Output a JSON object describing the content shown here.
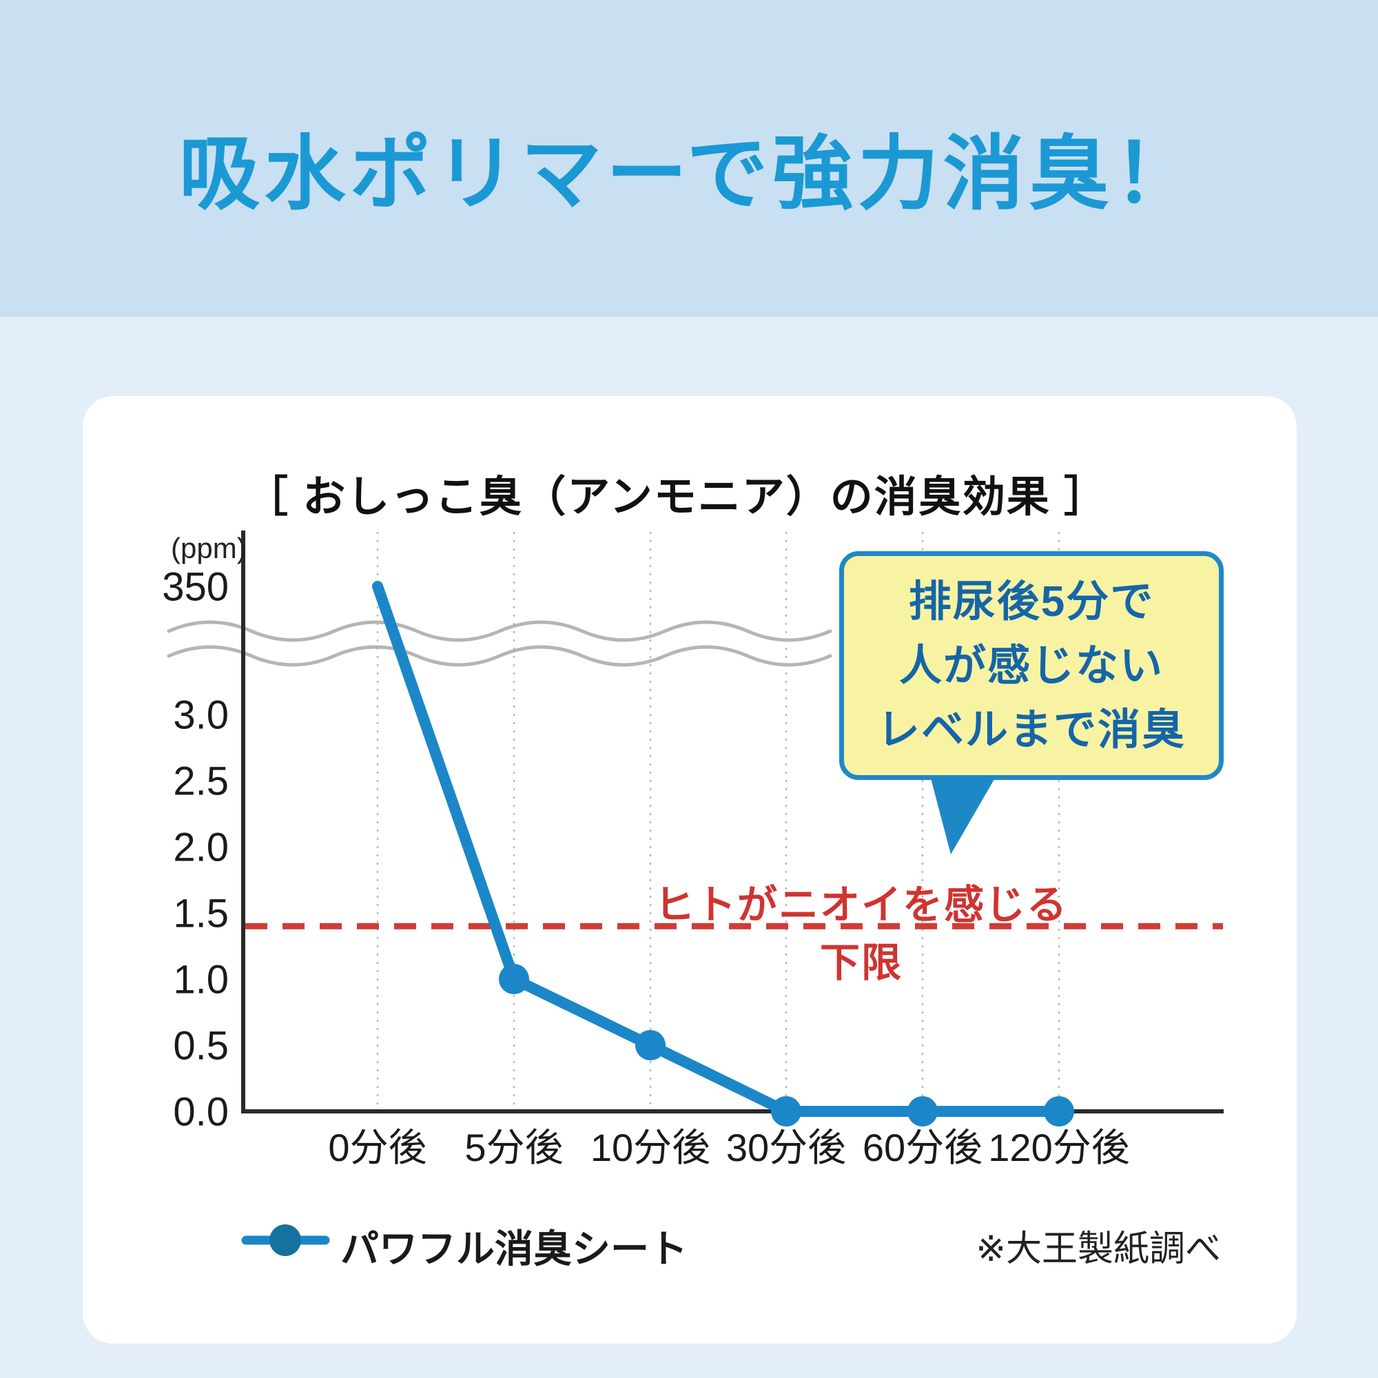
{
  "page": {
    "title": "吸水ポリマーで強力消臭！"
  },
  "chart": {
    "title": "［ おしっこ臭（アンモニア）の消臭効果 ］",
    "unit_label": "(ppm)",
    "y_ticks": [
      {
        "label": "350",
        "value": 350
      },
      {
        "label": "3.0",
        "value": 3.0
      },
      {
        "label": "2.5",
        "value": 2.5
      },
      {
        "label": "2.0",
        "value": 2.0
      },
      {
        "label": "1.5",
        "value": 1.5
      },
      {
        "label": "1.0",
        "value": 1.0
      },
      {
        "label": "0.5",
        "value": 0.5
      },
      {
        "label": "0.0",
        "value": 0.0
      }
    ],
    "threshold_label": "ヒトがニオイを感じる下限",
    "callout_lines": [
      "排尿後5分で",
      "人が感じない",
      "レベルまで消臭"
    ],
    "legend_label": "パワフル消臭シート",
    "source_note": "※大王製紙調べ"
  },
  "chart_data": {
    "type": "line",
    "title": "おしっこ臭（アンモニア）の消臭効果",
    "categories": [
      "0分後",
      "5分後",
      "10分後",
      "30分後",
      "60分後",
      "120分後"
    ],
    "series": [
      {
        "name": "パワフル消臭シート",
        "values": [
          350,
          1.0,
          0.5,
          0.0,
          0.0,
          0.0
        ]
      }
    ],
    "ylabel": "ppm",
    "ylim": [
      0,
      3.2
    ],
    "axis_break": {
      "between": [
        3.2,
        350
      ]
    },
    "threshold": {
      "value": 1.4,
      "label": "ヒトがニオイを感じる下限"
    },
    "annotation": "排尿後5分で人が感じないレベルまで消臭",
    "source": "※大王製紙調べ",
    "legend_position": "bottom-left",
    "grid": "vertical-dashed"
  },
  "colors": {
    "accent_blue": "#1B99D4",
    "line_blue": "#1B87C8",
    "dot_blue": "#15719F",
    "threshold_red": "#D23B33",
    "callout_bg": "#F8F3A3",
    "callout_border": "#1E88C7",
    "callout_text": "#1565A8",
    "header_bg": "#C9DFF2",
    "body_bg": "#E4EEF9",
    "card_bg": "#FFFFFF"
  }
}
